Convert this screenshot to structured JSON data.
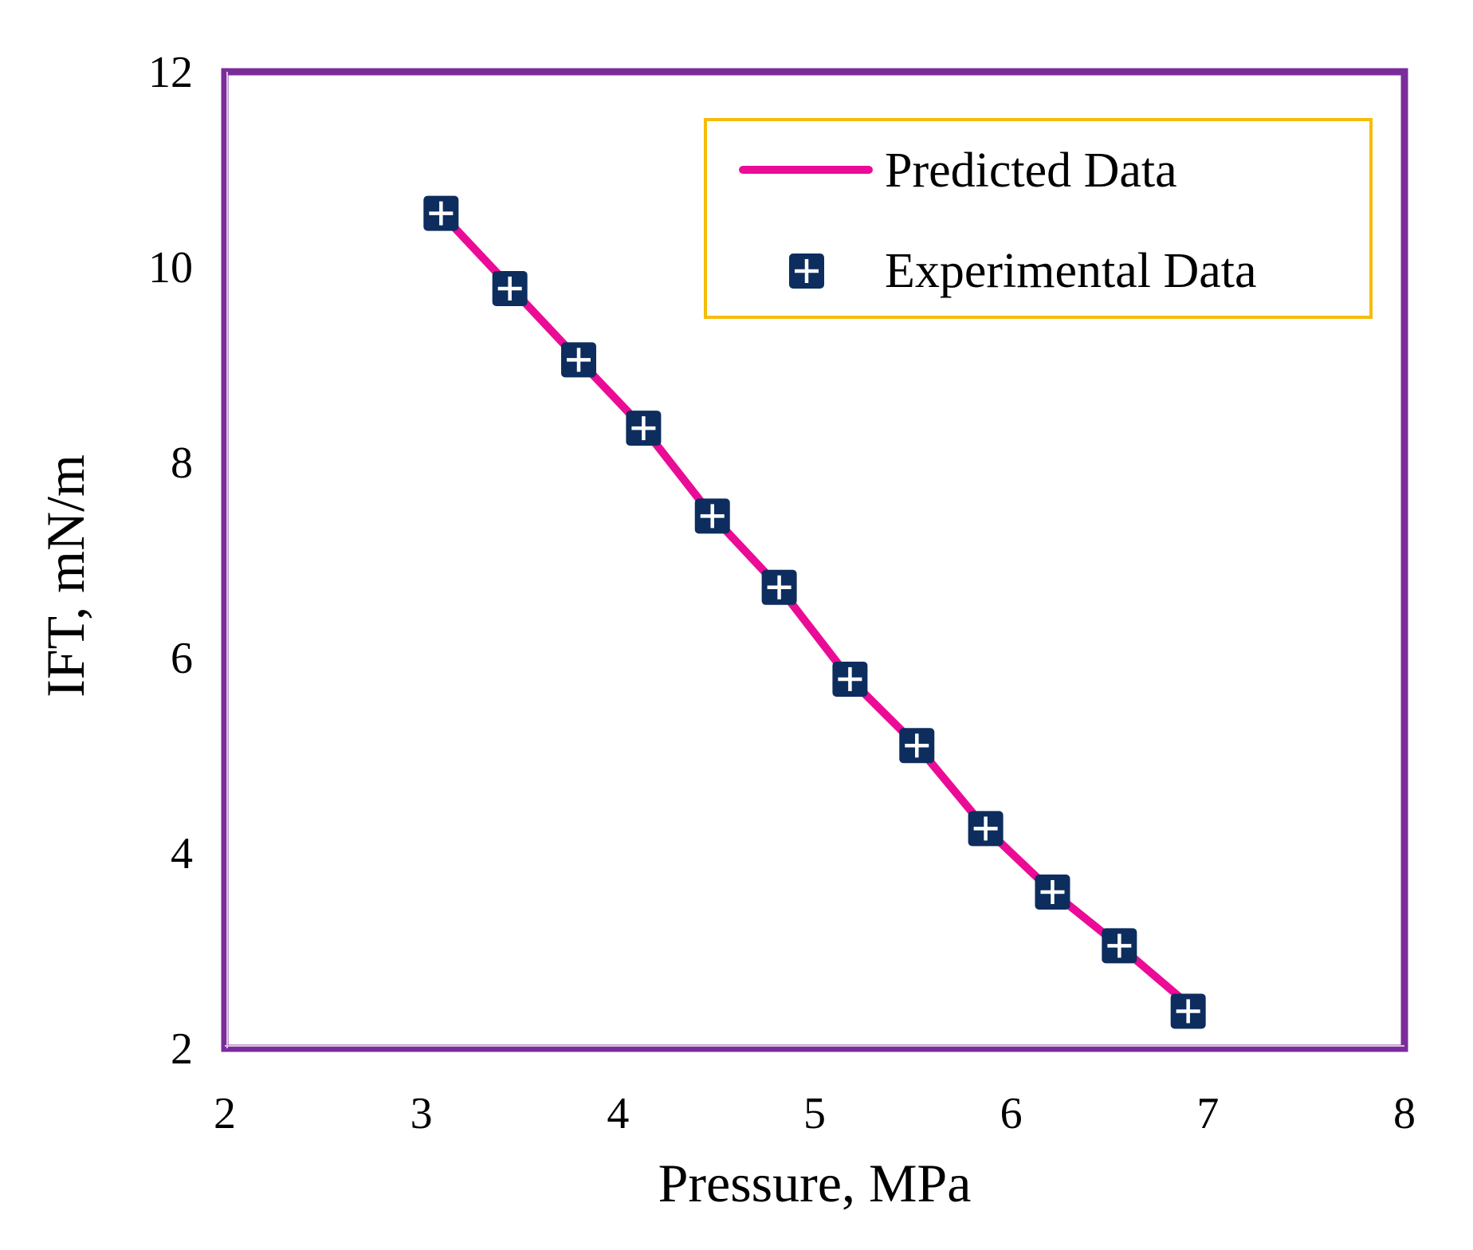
{
  "chart_data": {
    "type": "line",
    "title": "",
    "xlabel": "Pressure, MPa",
    "ylabel": "IFT, mN/m",
    "xlim": [
      2,
      8
    ],
    "ylim": [
      2,
      12
    ],
    "xticks": [
      2,
      3,
      4,
      5,
      6,
      7,
      8
    ],
    "yticks": [
      2,
      4,
      6,
      8,
      10,
      12
    ],
    "xtick_labels": [
      "2",
      "3",
      "4",
      "5",
      "6",
      "7",
      "8"
    ],
    "ytick_labels": [
      "2",
      "4",
      "6",
      "8",
      "10",
      "12"
    ],
    "grid": false,
    "legend_position": "top-right",
    "series": [
      {
        "name": "Predicted Data",
        "kind": "line",
        "color": "#ea0c96",
        "x": [
          3.1,
          3.45,
          3.8,
          4.13,
          4.48,
          4.82,
          5.18,
          5.52,
          5.87,
          6.21,
          6.55,
          6.9
        ],
        "y": [
          10.55,
          9.8,
          9.05,
          8.35,
          7.45,
          6.72,
          5.78,
          5.1,
          4.25,
          3.6,
          3.05,
          2.45
        ]
      },
      {
        "name": "Experimental Data",
        "kind": "scatter",
        "marker": "plus-square",
        "color": "#0d2d5e",
        "x": [
          3.1,
          3.45,
          3.8,
          4.13,
          4.48,
          4.82,
          5.18,
          5.52,
          5.87,
          6.21,
          6.55,
          6.9
        ],
        "y": [
          10.55,
          9.78,
          9.05,
          8.35,
          7.45,
          6.72,
          5.78,
          5.1,
          4.25,
          3.6,
          3.05,
          2.38
        ]
      }
    ],
    "frame_color": "#7b2c9a",
    "legend_border_color": "#f5bc0a"
  }
}
